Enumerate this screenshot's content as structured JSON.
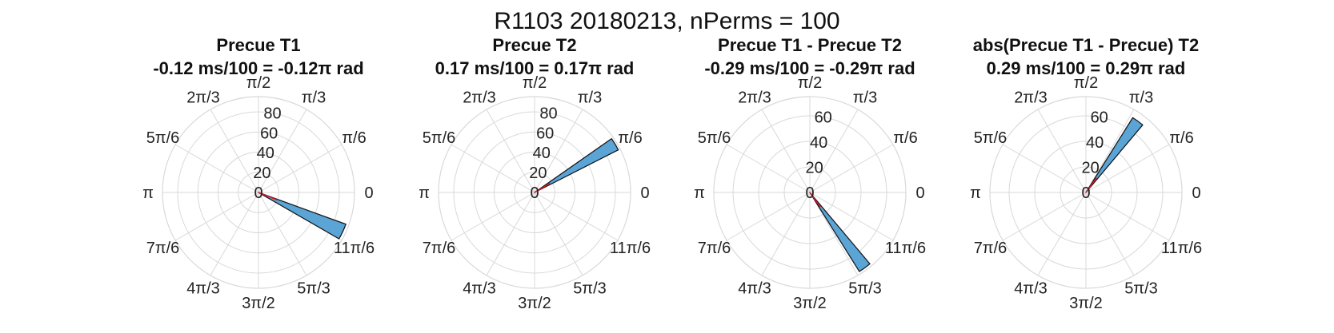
{
  "figure": {
    "title": "R1103 20180213, nPerms = 100"
  },
  "angle_labels": [
    "0",
    "π/6",
    "π/3",
    "π/2",
    "2π/3",
    "5π/6",
    "π",
    "7π/6",
    "4π/3",
    "3π/2",
    "5π/3",
    "11π/6"
  ],
  "colors": {
    "bar_fill": "#5ba4d6",
    "bar_edge": "#111111",
    "mean_line": "#e0162b",
    "grid": "#d9d9d9"
  },
  "chart_data": [
    {
      "type": "polar-histogram",
      "title": "Precue T1",
      "subtitle": "-0.12 ms/100 = -0.12π rad",
      "rmax": 95,
      "r_ticks": [
        0,
        20,
        40,
        60,
        80
      ],
      "bins": [
        {
          "theta_deg_start": 330,
          "theta_deg_end": 340,
          "count": 92
        }
      ],
      "mean_angle_deg": 338,
      "mean_length": 20
    },
    {
      "type": "polar-histogram",
      "title": "Precue T2",
      "subtitle": "0.17 ms/100 = 0.17π rad",
      "rmax": 95,
      "r_ticks": [
        0,
        20,
        40,
        60,
        80
      ],
      "bins": [
        {
          "theta_deg_start": 27,
          "theta_deg_end": 35,
          "count": 93
        }
      ],
      "mean_angle_deg": 31,
      "mean_length": 18
    },
    {
      "type": "polar-histogram",
      "title": "Precue T1 - Precue T2",
      "subtitle": "-0.29 ms/100 = -0.29π rad",
      "rmax": 75,
      "r_ticks": [
        0,
        20,
        40,
        60
      ],
      "bins": [
        {
          "theta_deg_start": 302,
          "theta_deg_end": 310,
          "count": 73
        }
      ],
      "mean_angle_deg": 306,
      "mean_length": 14
    },
    {
      "type": "polar-histogram",
      "title": "abs(Precue T1 - Precue) T2",
      "subtitle": "0.29 ms/100 = 0.29π rad",
      "rmax": 75,
      "r_ticks": [
        0,
        20,
        40,
        60
      ],
      "bins": [
        {
          "theta_deg_start": 50,
          "theta_deg_end": 58,
          "count": 69
        }
      ],
      "mean_angle_deg": 54,
      "mean_length": 14
    }
  ]
}
